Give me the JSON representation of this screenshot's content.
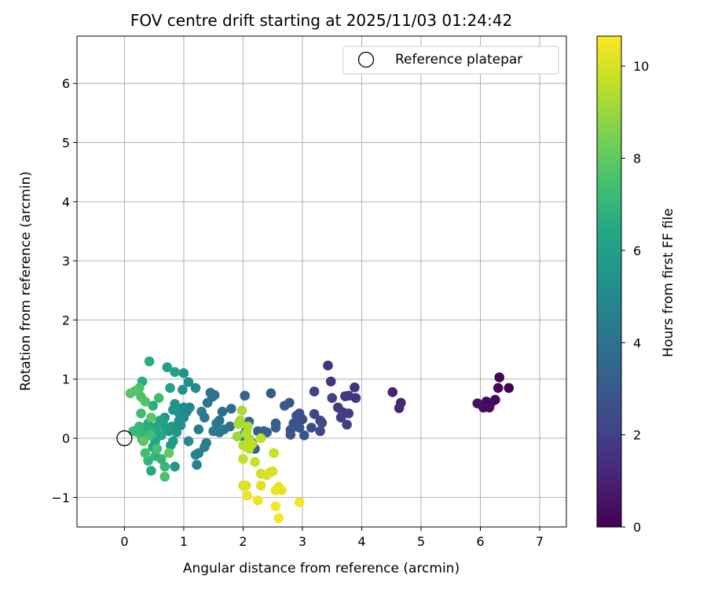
{
  "chart_data": {
    "type": "scatter",
    "title": "FOV centre drift starting at 2025/11/03 01:24:42",
    "xlabel": "Angular distance from reference (arcmin)",
    "ylabel": "Rotation from reference (arcmin)",
    "xlim": [
      -0.8,
      7.45
    ],
    "ylim": [
      -1.5,
      6.8
    ],
    "xticks": [
      0,
      1,
      2,
      3,
      4,
      5,
      6,
      7
    ],
    "yticks": [
      -1,
      0,
      1,
      2,
      3,
      4,
      5,
      6
    ],
    "xtick_labels": [
      "0",
      "1",
      "2",
      "3",
      "4",
      "5",
      "6",
      "7"
    ],
    "ytick_labels": [
      "−1",
      "0",
      "1",
      "2",
      "3",
      "4",
      "5",
      "6"
    ],
    "grid": true,
    "legend": {
      "position": "top-right",
      "entries": [
        "Reference platepar"
      ]
    },
    "reference_point": {
      "x": 0,
      "y": 0,
      "label": "Reference platepar"
    },
    "colorbar": {
      "label": "Hours from first FF file",
      "min": 0,
      "max": 10.65,
      "ticks": [
        0,
        2,
        4,
        6,
        8,
        10
      ],
      "tick_labels": [
        "0",
        "2",
        "4",
        "6",
        "8",
        "10"
      ],
      "colormap": "viridis"
    },
    "points": [
      {
        "x": 6.32,
        "y": 1.03,
        "c": 0.05
      },
      {
        "x": 6.48,
        "y": 0.85,
        "c": 0.1
      },
      {
        "x": 6.3,
        "y": 0.85,
        "c": 0.15
      },
      {
        "x": 6.25,
        "y": 0.65,
        "c": 0.2
      },
      {
        "x": 6.18,
        "y": 0.6,
        "c": 0.25
      },
      {
        "x": 6.1,
        "y": 0.62,
        "c": 0.3
      },
      {
        "x": 6.05,
        "y": 0.52,
        "c": 0.35
      },
      {
        "x": 6.15,
        "y": 0.52,
        "c": 0.4
      },
      {
        "x": 5.95,
        "y": 0.59,
        "c": 0.45
      },
      {
        "x": 4.52,
        "y": 0.78,
        "c": 1.0
      },
      {
        "x": 4.66,
        "y": 0.6,
        "c": 1.05
      },
      {
        "x": 4.63,
        "y": 0.51,
        "c": 1.1
      },
      {
        "x": 3.43,
        "y": 1.23,
        "c": 1.5
      },
      {
        "x": 3.88,
        "y": 0.86,
        "c": 1.55
      },
      {
        "x": 3.48,
        "y": 0.96,
        "c": 1.6
      },
      {
        "x": 3.9,
        "y": 0.68,
        "c": 1.65
      },
      {
        "x": 3.78,
        "y": 0.72,
        "c": 1.7
      },
      {
        "x": 3.72,
        "y": 0.71,
        "c": 1.75
      },
      {
        "x": 3.6,
        "y": 0.52,
        "c": 1.8
      },
      {
        "x": 3.68,
        "y": 0.44,
        "c": 1.85
      },
      {
        "x": 3.65,
        "y": 0.35,
        "c": 1.9
      },
      {
        "x": 3.78,
        "y": 0.42,
        "c": 1.95
      },
      {
        "x": 3.75,
        "y": 0.23,
        "c": 2.0
      },
      {
        "x": 3.5,
        "y": 0.68,
        "c": 2.05
      },
      {
        "x": 3.2,
        "y": 0.79,
        "c": 2.1
      },
      {
        "x": 3.2,
        "y": 0.41,
        "c": 2.2
      },
      {
        "x": 3.3,
        "y": 0.3,
        "c": 2.25
      },
      {
        "x": 3.33,
        "y": 0.26,
        "c": 2.3
      },
      {
        "x": 3.15,
        "y": 0.18,
        "c": 2.35
      },
      {
        "x": 3.3,
        "y": 0.12,
        "c": 2.4
      },
      {
        "x": 3.0,
        "y": 0.32,
        "c": 2.5
      },
      {
        "x": 2.95,
        "y": 0.42,
        "c": 2.55
      },
      {
        "x": 2.9,
        "y": 0.38,
        "c": 2.6
      },
      {
        "x": 2.85,
        "y": 0.25,
        "c": 2.65
      },
      {
        "x": 2.8,
        "y": 0.14,
        "c": 2.7
      },
      {
        "x": 2.95,
        "y": 0.18,
        "c": 2.75
      },
      {
        "x": 3.03,
        "y": 0.05,
        "c": 2.8
      },
      {
        "x": 2.8,
        "y": 0.06,
        "c": 2.85
      },
      {
        "x": 2.78,
        "y": 0.6,
        "c": 2.9
      },
      {
        "x": 2.7,
        "y": 0.55,
        "c": 2.95
      },
      {
        "x": 2.47,
        "y": 0.76,
        "c": 3.0
      },
      {
        "x": 2.55,
        "y": 0.25,
        "c": 3.1
      },
      {
        "x": 2.55,
        "y": 0.18,
        "c": 3.15
      },
      {
        "x": 2.4,
        "y": 0.1,
        "c": 3.2
      },
      {
        "x": 2.35,
        "y": 0.12,
        "c": 3.3
      },
      {
        "x": 2.25,
        "y": 0.12,
        "c": 3.35
      },
      {
        "x": 2.2,
        "y": -0.18,
        "c": 3.4
      },
      {
        "x": 2.03,
        "y": 0.72,
        "c": 3.5
      },
      {
        "x": 2.1,
        "y": 0.28,
        "c": 3.55
      },
      {
        "x": 2.05,
        "y": 0.12,
        "c": 3.6
      },
      {
        "x": 2.15,
        "y": -0.08,
        "c": 3.65
      },
      {
        "x": 1.98,
        "y": 0.04,
        "c": 3.7
      },
      {
        "x": 1.8,
        "y": 0.5,
        "c": 3.75
      },
      {
        "x": 1.78,
        "y": 0.2,
        "c": 3.8
      },
      {
        "x": 1.65,
        "y": 0.45,
        "c": 3.85
      },
      {
        "x": 1.6,
        "y": 0.3,
        "c": 3.9
      },
      {
        "x": 1.52,
        "y": 0.73,
        "c": 3.95
      },
      {
        "x": 1.48,
        "y": 0.7,
        "c": 4.0
      },
      {
        "x": 1.45,
        "y": 0.77,
        "c": 4.05
      },
      {
        "x": 1.4,
        "y": 0.6,
        "c": 4.1
      },
      {
        "x": 1.55,
        "y": 0.25,
        "c": 4.15
      },
      {
        "x": 1.6,
        "y": 0.1,
        "c": 4.2
      },
      {
        "x": 1.68,
        "y": 0.15,
        "c": 4.25
      },
      {
        "x": 1.5,
        "y": 0.12,
        "c": 4.3
      },
      {
        "x": 1.35,
        "y": 0.35,
        "c": 4.35
      },
      {
        "x": 1.3,
        "y": 0.45,
        "c": 4.4
      },
      {
        "x": 1.25,
        "y": 0.15,
        "c": 4.45
      },
      {
        "x": 1.38,
        "y": -0.08,
        "c": 4.5
      },
      {
        "x": 1.35,
        "y": -0.15,
        "c": 4.55
      },
      {
        "x": 1.25,
        "y": -0.25,
        "c": 4.6
      },
      {
        "x": 1.2,
        "y": -0.28,
        "c": 4.65
      },
      {
        "x": 1.22,
        "y": -0.45,
        "c": 4.7
      },
      {
        "x": 1.1,
        "y": 0.52,
        "c": 4.8
      },
      {
        "x": 1.05,
        "y": 0.45,
        "c": 4.85
      },
      {
        "x": 1.0,
        "y": 0.35,
        "c": 4.9
      },
      {
        "x": 1.08,
        "y": -0.05,
        "c": 4.95
      },
      {
        "x": 1.2,
        "y": 0.85,
        "c": 5.0
      },
      {
        "x": 1.0,
        "y": 0.52,
        "c": 5.05
      },
      {
        "x": 0.95,
        "y": 0.4,
        "c": 5.1
      },
      {
        "x": 0.9,
        "y": 0.45,
        "c": 5.15
      },
      {
        "x": 0.92,
        "y": 0.3,
        "c": 5.2
      },
      {
        "x": 0.95,
        "y": 0.22,
        "c": 5.25
      },
      {
        "x": 1.08,
        "y": 0.95,
        "c": 5.3
      },
      {
        "x": 1.0,
        "y": 1.1,
        "c": 5.35
      },
      {
        "x": 0.98,
        "y": 0.82,
        "c": 5.4
      },
      {
        "x": 0.85,
        "y": 0.58,
        "c": 5.45
      },
      {
        "x": 0.82,
        "y": 0.48,
        "c": 5.5
      },
      {
        "x": 0.8,
        "y": 0.2,
        "c": 5.55
      },
      {
        "x": 0.75,
        "y": 0.12,
        "c": 5.6
      },
      {
        "x": 0.88,
        "y": 0.1,
        "c": 5.65
      },
      {
        "x": 0.82,
        "y": -0.05,
        "c": 5.7
      },
      {
        "x": 0.78,
        "y": -0.12,
        "c": 5.75
      },
      {
        "x": 0.85,
        "y": -0.48,
        "c": 5.8
      },
      {
        "x": 0.68,
        "y": 0.35,
        "c": 5.85
      },
      {
        "x": 0.65,
        "y": 0.25,
        "c": 5.9
      },
      {
        "x": 0.7,
        "y": 0.15,
        "c": 5.95
      },
      {
        "x": 0.72,
        "y": 1.2,
        "c": 6.0
      },
      {
        "x": 0.85,
        "y": 1.12,
        "c": 6.05
      },
      {
        "x": 0.77,
        "y": 0.85,
        "c": 6.1
      },
      {
        "x": 0.6,
        "y": 0.3,
        "c": 6.15
      },
      {
        "x": 0.55,
        "y": 0.2,
        "c": 6.2
      },
      {
        "x": 0.5,
        "y": 0.12,
        "c": 6.25
      },
      {
        "x": 0.62,
        "y": 0.05,
        "c": 6.3
      },
      {
        "x": 0.52,
        "y": -0.05,
        "c": 6.35
      },
      {
        "x": 0.48,
        "y": -0.15,
        "c": 6.4
      },
      {
        "x": 0.45,
        "y": -0.55,
        "c": 6.45
      },
      {
        "x": 0.4,
        "y": 0.25,
        "c": 6.5
      },
      {
        "x": 0.38,
        "y": 0.15,
        "c": 6.55
      },
      {
        "x": 0.42,
        "y": 1.3,
        "c": 6.6
      },
      {
        "x": 0.3,
        "y": 0.96,
        "c": 6.65
      },
      {
        "x": 0.48,
        "y": 0.55,
        "c": 6.7
      },
      {
        "x": 0.35,
        "y": 0.05,
        "c": 6.75
      },
      {
        "x": 0.3,
        "y": -0.02,
        "c": 6.8
      },
      {
        "x": 0.45,
        "y": 0.1,
        "c": 6.85
      },
      {
        "x": 0.52,
        "y": -0.3,
        "c": 6.9
      },
      {
        "x": 0.62,
        "y": -0.35,
        "c": 6.95
      },
      {
        "x": 0.4,
        "y": -0.38,
        "c": 7.0
      },
      {
        "x": 0.68,
        "y": -0.48,
        "c": 7.05
      },
      {
        "x": 0.25,
        "y": 0.2,
        "c": 7.1
      },
      {
        "x": 0.22,
        "y": 0.1,
        "c": 7.15
      },
      {
        "x": 0.15,
        "y": 0.12,
        "c": 7.2
      },
      {
        "x": 0.28,
        "y": 0.42,
        "c": 7.25
      },
      {
        "x": 0.58,
        "y": 0.68,
        "c": 7.3
      },
      {
        "x": 0.35,
        "y": -0.25,
        "c": 7.4
      },
      {
        "x": 0.42,
        "y": 0.05,
        "c": 7.45
      },
      {
        "x": 0.55,
        "y": -0.18,
        "c": 7.5
      },
      {
        "x": 0.68,
        "y": -0.65,
        "c": 7.55
      },
      {
        "x": 0.25,
        "y": 0.85,
        "c": 7.6
      },
      {
        "x": 0.28,
        "y": 0.7,
        "c": 7.65
      },
      {
        "x": 0.35,
        "y": 0.62,
        "c": 7.7
      },
      {
        "x": 0.1,
        "y": 0.76,
        "c": 7.75
      },
      {
        "x": 0.18,
        "y": 0.8,
        "c": 7.8
      },
      {
        "x": 0.45,
        "y": 0.35,
        "c": 7.85
      },
      {
        "x": 0.32,
        "y": -0.05,
        "c": 7.9
      },
      {
        "x": 0.75,
        "y": -0.25,
        "c": 8.0
      },
      {
        "x": 1.9,
        "y": 0.03,
        "c": 9.0
      },
      {
        "x": 1.95,
        "y": 0.3,
        "c": 9.2
      },
      {
        "x": 1.98,
        "y": 0.47,
        "c": 9.25
      },
      {
        "x": 1.92,
        "y": 0.24,
        "c": 9.3
      },
      {
        "x": 2.08,
        "y": 0.2,
        "c": 9.35
      },
      {
        "x": 2.05,
        "y": 0.08,
        "c": 9.4
      },
      {
        "x": 2.1,
        "y": 0.0,
        "c": 9.45
      },
      {
        "x": 2.0,
        "y": -0.12,
        "c": 9.5
      },
      {
        "x": 2.1,
        "y": -0.18,
        "c": 9.55
      },
      {
        "x": 2.15,
        "y": -0.1,
        "c": 9.6
      },
      {
        "x": 2.3,
        "y": 0.0,
        "c": 9.65
      },
      {
        "x": 2.0,
        "y": -0.35,
        "c": 9.7
      },
      {
        "x": 2.2,
        "y": -0.4,
        "c": 9.75
      },
      {
        "x": 2.52,
        "y": -0.25,
        "c": 9.8
      },
      {
        "x": 2.3,
        "y": -0.6,
        "c": 9.85
      },
      {
        "x": 2.45,
        "y": -0.58,
        "c": 9.9
      },
      {
        "x": 2.5,
        "y": -0.56,
        "c": 9.95
      },
      {
        "x": 2.4,
        "y": -0.62,
        "c": 10.0
      },
      {
        "x": 2.0,
        "y": -0.8,
        "c": 10.05
      },
      {
        "x": 2.05,
        "y": -0.8,
        "c": 10.1
      },
      {
        "x": 2.3,
        "y": -0.8,
        "c": 10.15
      },
      {
        "x": 2.6,
        "y": -0.82,
        "c": 10.2
      },
      {
        "x": 2.55,
        "y": -0.88,
        "c": 10.25
      },
      {
        "x": 2.65,
        "y": -0.88,
        "c": 10.3
      },
      {
        "x": 2.07,
        "y": -0.97,
        "c": 10.35
      },
      {
        "x": 2.25,
        "y": -1.05,
        "c": 10.4
      },
      {
        "x": 2.95,
        "y": -1.08,
        "c": 10.45
      },
      {
        "x": 2.55,
        "y": -1.15,
        "c": 10.5
      },
      {
        "x": 2.6,
        "y": -1.35,
        "c": 10.55
      }
    ]
  }
}
